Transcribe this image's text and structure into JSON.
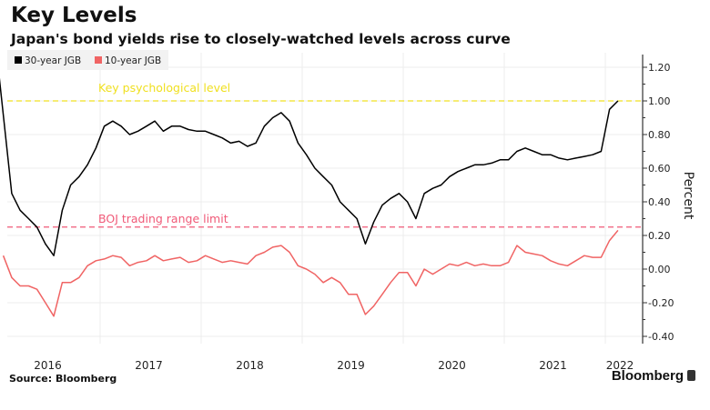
{
  "header": {
    "title": "Key Levels",
    "subtitle": "Japan's bond yields rise to closely-watched levels across curve"
  },
  "footer": {
    "source": "Source: Bloomberg",
    "brand": "Bloomberg"
  },
  "chart_data": {
    "type": "line",
    "title": "Key Levels",
    "subtitle": "Japan's bond yields rise to closely-watched levels across curve",
    "ylabel": "Percent",
    "xlabel": "",
    "ylim": [
      -0.4,
      1.2
    ],
    "xlim": [
      "2016-01",
      "2022-02"
    ],
    "y_ticks": [
      "1.20",
      "1.00",
      "0.80",
      "0.60",
      "0.40",
      "0.20",
      "0.00",
      "-0.20",
      "-0.40"
    ],
    "y_tick_values": [
      1.2,
      1.0,
      0.8,
      0.6,
      0.4,
      0.2,
      0.0,
      -0.2,
      -0.4
    ],
    "x_ticks": [
      "2016",
      "2017",
      "2018",
      "2019",
      "2020",
      "2021",
      "2022"
    ],
    "grid": true,
    "y_axis_side": "right",
    "legend_placement": "top-left",
    "x": [
      "2016-01",
      "2016-02",
      "2016-03",
      "2016-04",
      "2016-05",
      "2016-06",
      "2016-07",
      "2016-08",
      "2016-09",
      "2016-10",
      "2016-11",
      "2016-12",
      "2017-01",
      "2017-02",
      "2017-03",
      "2017-04",
      "2017-05",
      "2017-06",
      "2017-07",
      "2017-08",
      "2017-09",
      "2017-10",
      "2017-11",
      "2017-12",
      "2018-01",
      "2018-02",
      "2018-03",
      "2018-04",
      "2018-05",
      "2018-06",
      "2018-07",
      "2018-08",
      "2018-09",
      "2018-10",
      "2018-11",
      "2018-12",
      "2019-01",
      "2019-02",
      "2019-03",
      "2019-04",
      "2019-05",
      "2019-06",
      "2019-07",
      "2019-08",
      "2019-09",
      "2019-10",
      "2019-11",
      "2019-12",
      "2020-01",
      "2020-02",
      "2020-03",
      "2020-04",
      "2020-05",
      "2020-06",
      "2020-07",
      "2020-08",
      "2020-09",
      "2020-10",
      "2020-11",
      "2020-12",
      "2021-01",
      "2021-02",
      "2021-03",
      "2021-04",
      "2021-05",
      "2021-06",
      "2021-07",
      "2021-08",
      "2021-09",
      "2021-10",
      "2021-11",
      "2021-12",
      "2022-01",
      "2022-02"
    ],
    "series": [
      {
        "name": "30-year JGB",
        "color": "#000000",
        "values": [
          1.15,
          0.45,
          0.35,
          0.3,
          0.25,
          0.15,
          0.08,
          0.35,
          0.5,
          0.55,
          0.62,
          0.72,
          0.85,
          0.88,
          0.85,
          0.8,
          0.82,
          0.85,
          0.88,
          0.82,
          0.85,
          0.85,
          0.83,
          0.82,
          0.82,
          0.8,
          0.78,
          0.75,
          0.76,
          0.73,
          0.75,
          0.85,
          0.9,
          0.93,
          0.88,
          0.75,
          0.68,
          0.6,
          0.55,
          0.5,
          0.4,
          0.35,
          0.3,
          0.15,
          0.28,
          0.38,
          0.42,
          0.45,
          0.4,
          0.3,
          0.45,
          0.48,
          0.5,
          0.55,
          0.58,
          0.6,
          0.62,
          0.62,
          0.63,
          0.65,
          0.65,
          0.7,
          0.72,
          0.7,
          0.68,
          0.68,
          0.66,
          0.65,
          0.66,
          0.67,
          0.68,
          0.7,
          0.95,
          1.0
        ]
      },
      {
        "name": "10-year JGB",
        "color": "#f06464",
        "values": [
          0.08,
          -0.05,
          -0.1,
          -0.1,
          -0.12,
          -0.2,
          -0.28,
          -0.08,
          -0.08,
          -0.05,
          0.02,
          0.05,
          0.06,
          0.08,
          0.07,
          0.02,
          0.04,
          0.05,
          0.08,
          0.05,
          0.06,
          0.07,
          0.04,
          0.05,
          0.08,
          0.06,
          0.04,
          0.05,
          0.04,
          0.03,
          0.08,
          0.1,
          0.13,
          0.14,
          0.1,
          0.02,
          0.0,
          -0.03,
          -0.08,
          -0.05,
          -0.08,
          -0.15,
          -0.15,
          -0.27,
          -0.22,
          -0.15,
          -0.08,
          -0.02,
          -0.02,
          -0.1,
          0.0,
          -0.03,
          0.0,
          0.03,
          0.02,
          0.04,
          0.02,
          0.03,
          0.02,
          0.02,
          0.04,
          0.14,
          0.1,
          0.09,
          0.08,
          0.05,
          0.03,
          0.02,
          0.05,
          0.08,
          0.07,
          0.07,
          0.17,
          0.23
        ]
      }
    ],
    "reference_lines": [
      {
        "label": "Key psychological level",
        "value": 1.0,
        "color": "#f0e020",
        "style": "dashed"
      },
      {
        "label": "BOJ trading range limit",
        "value": 0.25,
        "color": "#f05a78",
        "style": "dashed"
      }
    ]
  }
}
